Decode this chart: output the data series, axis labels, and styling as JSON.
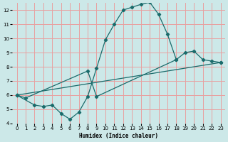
{
  "xlabel": "Humidex (Indice chaleur)",
  "xlim": [
    -0.5,
    23.5
  ],
  "ylim": [
    4,
    12.5
  ],
  "yticks": [
    4,
    5,
    6,
    7,
    8,
    9,
    10,
    11,
    12
  ],
  "xticks": [
    0,
    1,
    2,
    3,
    4,
    5,
    6,
    7,
    8,
    9,
    10,
    11,
    12,
    13,
    14,
    15,
    16,
    17,
    18,
    19,
    20,
    21,
    22,
    23
  ],
  "bg_color": "#cce8e8",
  "line_color": "#1a6b6b",
  "grid_color": "#e8a0a0",
  "curve1_x": [
    0,
    2,
    3,
    4,
    5,
    6,
    7,
    8,
    9,
    10,
    11,
    12,
    13,
    14,
    15,
    16,
    17,
    18
  ],
  "curve1_y": [
    6.0,
    5.3,
    5.2,
    5.3,
    4.7,
    4.3,
    4.8,
    5.9,
    7.9,
    9.9,
    11.0,
    12.0,
    12.2,
    12.4,
    12.55,
    11.7,
    10.3,
    8.5
  ],
  "curve2_x": [
    0,
    1,
    8,
    9,
    18,
    19,
    20,
    21,
    22,
    23
  ],
  "curve2_y": [
    6.0,
    5.8,
    7.7,
    5.9,
    8.5,
    9.0,
    9.1,
    8.5,
    8.4,
    8.3
  ],
  "curve3_x": [
    0,
    23
  ],
  "curve3_y": [
    6.0,
    8.3
  ]
}
